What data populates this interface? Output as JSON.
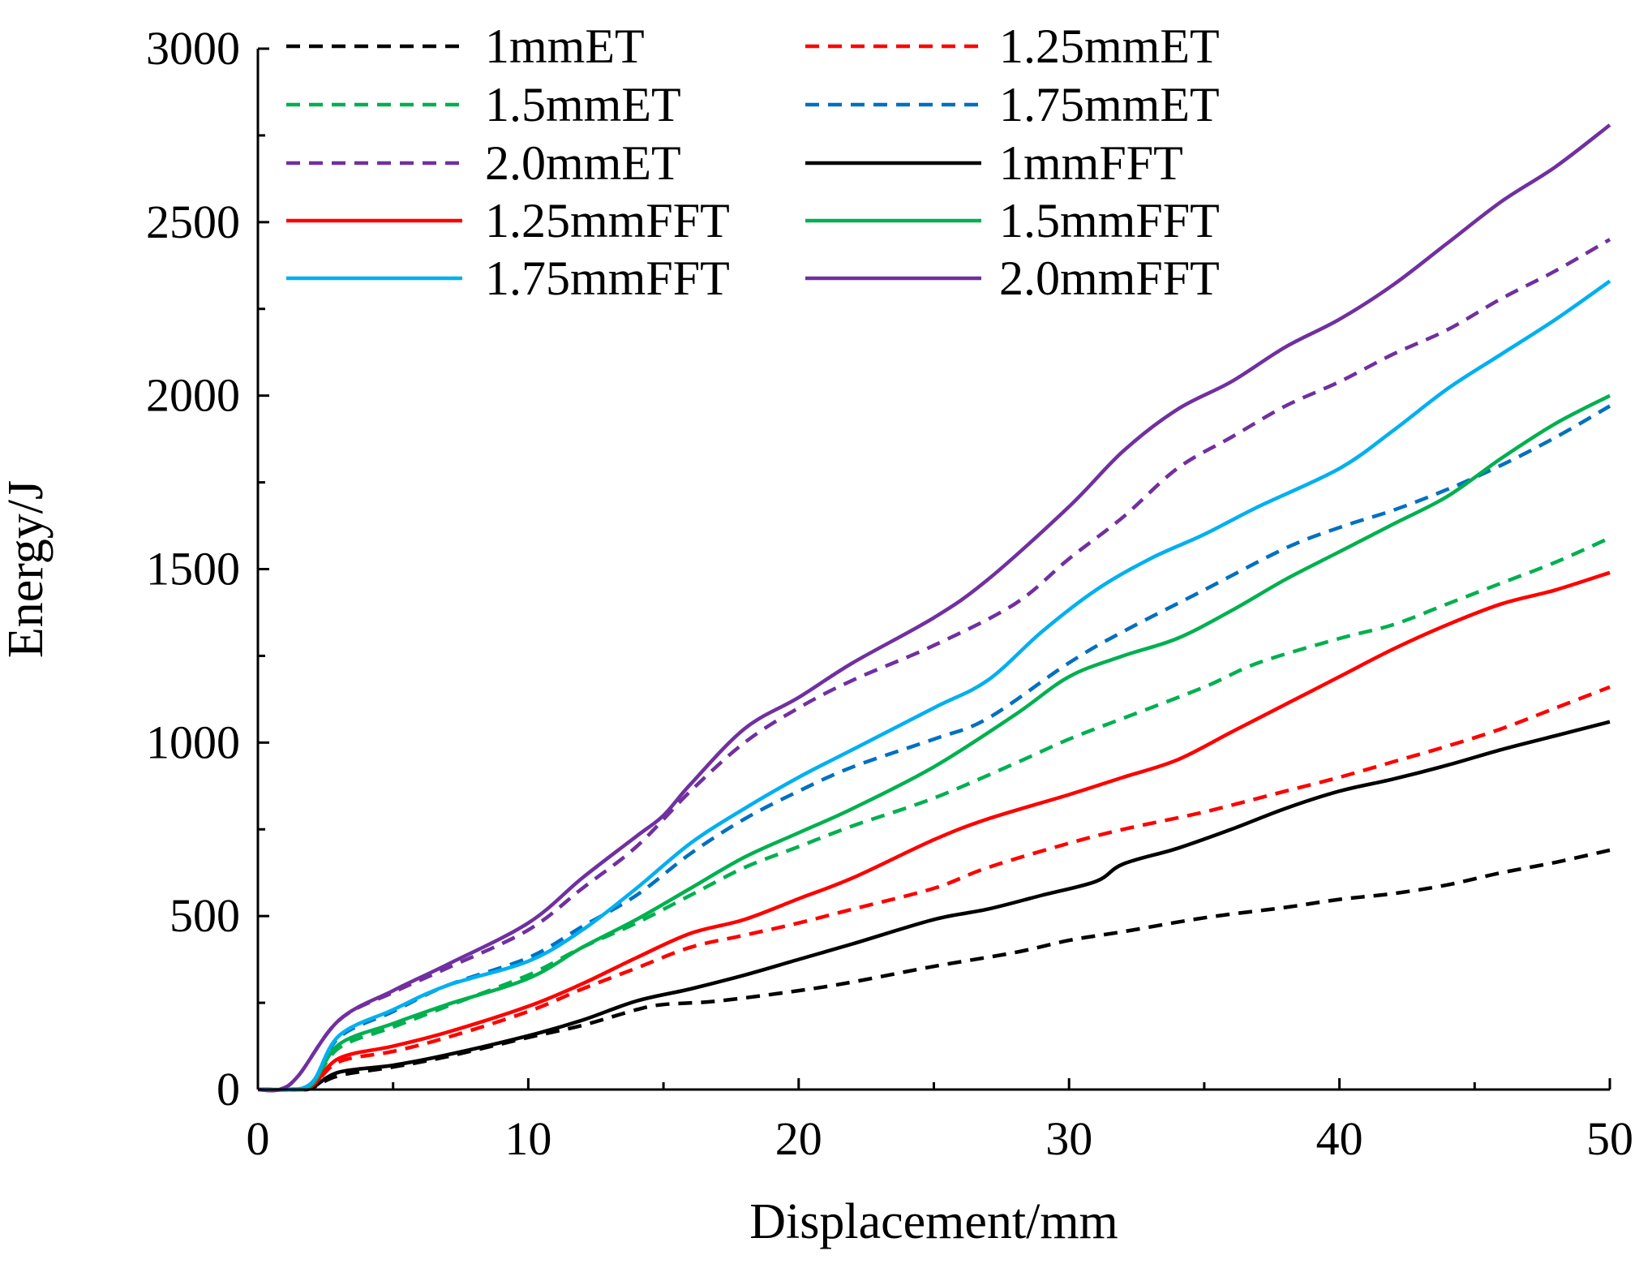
{
  "chart_data": {
    "type": "line",
    "title": "",
    "xlabel": "Displacement/mm",
    "ylabel": "Energy/J",
    "xlim": [
      0,
      50
    ],
    "ylim": [
      0,
      3000
    ],
    "xticks": [
      0,
      10,
      20,
      30,
      40,
      50
    ],
    "yticks": [
      0,
      500,
      1000,
      1500,
      2000,
      2500,
      3000
    ],
    "grid": false,
    "legend_position": "top-left",
    "series": [
      {
        "name": "1mmET",
        "color": "#000000",
        "dashed": true,
        "points": [
          [
            0,
            0
          ],
          [
            1.5,
            0
          ],
          [
            2,
            5
          ],
          [
            3,
            40
          ],
          [
            5,
            65
          ],
          [
            7,
            95
          ],
          [
            10,
            150
          ],
          [
            12,
            185
          ],
          [
            14,
            230
          ],
          [
            15,
            245
          ],
          [
            17,
            255
          ],
          [
            20,
            285
          ],
          [
            22,
            310
          ],
          [
            25,
            355
          ],
          [
            28,
            395
          ],
          [
            30,
            430
          ],
          [
            32,
            455
          ],
          [
            35,
            495
          ],
          [
            38,
            525
          ],
          [
            40,
            548
          ],
          [
            42,
            565
          ],
          [
            44,
            590
          ],
          [
            46,
            625
          ],
          [
            48,
            655
          ],
          [
            50,
            690
          ]
        ]
      },
      {
        "name": "1.25mmET",
        "color": "#ff0000",
        "dashed": true,
        "points": [
          [
            0,
            0
          ],
          [
            1.2,
            0
          ],
          [
            2,
            10
          ],
          [
            3,
            80
          ],
          [
            5,
            110
          ],
          [
            7,
            150
          ],
          [
            10,
            225
          ],
          [
            12,
            290
          ],
          [
            14,
            350
          ],
          [
            16,
            410
          ],
          [
            18,
            445
          ],
          [
            20,
            480
          ],
          [
            22,
            520
          ],
          [
            25,
            580
          ],
          [
            27,
            640
          ],
          [
            30,
            710
          ],
          [
            32,
            750
          ],
          [
            35,
            800
          ],
          [
            38,
            860
          ],
          [
            40,
            900
          ],
          [
            42,
            945
          ],
          [
            44,
            990
          ],
          [
            46,
            1040
          ],
          [
            48,
            1100
          ],
          [
            50,
            1160
          ]
        ]
      },
      {
        "name": "1.5mmET",
        "color": "#00b050",
        "dashed": true,
        "points": [
          [
            0,
            0
          ],
          [
            1.2,
            0
          ],
          [
            2,
            15
          ],
          [
            3,
            120
          ],
          [
            5,
            180
          ],
          [
            7,
            240
          ],
          [
            10,
            330
          ],
          [
            12,
            410
          ],
          [
            14,
            480
          ],
          [
            16,
            560
          ],
          [
            18,
            640
          ],
          [
            20,
            700
          ],
          [
            22,
            760
          ],
          [
            25,
            840
          ],
          [
            28,
            940
          ],
          [
            30,
            1010
          ],
          [
            32,
            1070
          ],
          [
            35,
            1160
          ],
          [
            37,
            1230
          ],
          [
            40,
            1300
          ],
          [
            42,
            1340
          ],
          [
            44,
            1400
          ],
          [
            46,
            1460
          ],
          [
            48,
            1520
          ],
          [
            50,
            1590
          ]
        ]
      },
      {
        "name": "1.75mmET",
        "color": "#0070c0",
        "dashed": true,
        "points": [
          [
            0,
            0
          ],
          [
            1,
            0
          ],
          [
            2,
            20
          ],
          [
            3,
            150
          ],
          [
            5,
            225
          ],
          [
            7,
            300
          ],
          [
            10,
            380
          ],
          [
            12,
            470
          ],
          [
            14,
            560
          ],
          [
            16,
            680
          ],
          [
            18,
            780
          ],
          [
            20,
            860
          ],
          [
            22,
            930
          ],
          [
            25,
            1010
          ],
          [
            27,
            1070
          ],
          [
            30,
            1230
          ],
          [
            32,
            1320
          ],
          [
            35,
            1440
          ],
          [
            38,
            1560
          ],
          [
            40,
            1620
          ],
          [
            42,
            1670
          ],
          [
            44,
            1730
          ],
          [
            46,
            1800
          ],
          [
            48,
            1880
          ],
          [
            50,
            1970
          ]
        ]
      },
      {
        "name": "2.0mmET",
        "color": "#7030a0",
        "dashed": true,
        "points": [
          [
            0,
            0
          ],
          [
            0.8,
            0
          ],
          [
            1.5,
            40
          ],
          [
            3,
            200
          ],
          [
            5,
            280
          ],
          [
            7,
            350
          ],
          [
            10,
            460
          ],
          [
            12,
            580
          ],
          [
            14,
            700
          ],
          [
            16,
            860
          ],
          [
            18,
            1000
          ],
          [
            20,
            1100
          ],
          [
            22,
            1180
          ],
          [
            25,
            1280
          ],
          [
            28,
            1400
          ],
          [
            30,
            1530
          ],
          [
            32,
            1650
          ],
          [
            34,
            1790
          ],
          [
            36,
            1880
          ],
          [
            38,
            1970
          ],
          [
            40,
            2040
          ],
          [
            42,
            2120
          ],
          [
            44,
            2190
          ],
          [
            46,
            2280
          ],
          [
            48,
            2360
          ],
          [
            50,
            2450
          ]
        ]
      },
      {
        "name": "1mmFFT",
        "color": "#000000",
        "dashed": false,
        "points": [
          [
            0,
            0
          ],
          [
            1.5,
            0
          ],
          [
            2,
            5
          ],
          [
            3,
            50
          ],
          [
            5,
            70
          ],
          [
            7,
            100
          ],
          [
            10,
            155
          ],
          [
            12,
            200
          ],
          [
            14,
            255
          ],
          [
            16,
            290
          ],
          [
            18,
            330
          ],
          [
            20,
            375
          ],
          [
            22,
            420
          ],
          [
            25,
            490
          ],
          [
            27,
            520
          ],
          [
            29,
            560
          ],
          [
            31,
            600
          ],
          [
            32,
            650
          ],
          [
            34,
            695
          ],
          [
            36,
            750
          ],
          [
            38,
            810
          ],
          [
            40,
            860
          ],
          [
            42,
            895
          ],
          [
            44,
            935
          ],
          [
            46,
            980
          ],
          [
            48,
            1020
          ],
          [
            50,
            1060
          ]
        ]
      },
      {
        "name": "1.25mmFFT",
        "color": "#ff0000",
        "dashed": false,
        "points": [
          [
            0,
            0
          ],
          [
            1.2,
            0
          ],
          [
            2,
            10
          ],
          [
            3,
            90
          ],
          [
            5,
            125
          ],
          [
            7,
            165
          ],
          [
            10,
            240
          ],
          [
            12,
            305
          ],
          [
            14,
            380
          ],
          [
            16,
            450
          ],
          [
            18,
            490
          ],
          [
            20,
            550
          ],
          [
            22,
            610
          ],
          [
            25,
            720
          ],
          [
            27,
            780
          ],
          [
            30,
            850
          ],
          [
            32,
            900
          ],
          [
            34,
            950
          ],
          [
            36,
            1030
          ],
          [
            38,
            1110
          ],
          [
            40,
            1190
          ],
          [
            42,
            1270
          ],
          [
            44,
            1340
          ],
          [
            46,
            1400
          ],
          [
            48,
            1440
          ],
          [
            50,
            1490
          ]
        ]
      },
      {
        "name": "1.5mmFFT",
        "color": "#00b050",
        "dashed": false,
        "points": [
          [
            0,
            0
          ],
          [
            1.2,
            0
          ],
          [
            2,
            15
          ],
          [
            3,
            130
          ],
          [
            5,
            190
          ],
          [
            7,
            245
          ],
          [
            10,
            320
          ],
          [
            12,
            410
          ],
          [
            14,
            490
          ],
          [
            16,
            580
          ],
          [
            18,
            670
          ],
          [
            20,
            740
          ],
          [
            22,
            810
          ],
          [
            25,
            930
          ],
          [
            28,
            1080
          ],
          [
            30,
            1190
          ],
          [
            32,
            1250
          ],
          [
            34,
            1300
          ],
          [
            36,
            1380
          ],
          [
            38,
            1470
          ],
          [
            40,
            1550
          ],
          [
            42,
            1630
          ],
          [
            44,
            1710
          ],
          [
            46,
            1820
          ],
          [
            48,
            1920
          ],
          [
            50,
            2000
          ]
        ]
      },
      {
        "name": "1.75mmFFT",
        "color": "#00b0f0",
        "dashed": false,
        "points": [
          [
            0,
            0
          ],
          [
            1,
            0
          ],
          [
            2,
            20
          ],
          [
            3,
            155
          ],
          [
            5,
            230
          ],
          [
            7,
            300
          ],
          [
            10,
            370
          ],
          [
            12,
            460
          ],
          [
            14,
            580
          ],
          [
            16,
            710
          ],
          [
            18,
            810
          ],
          [
            20,
            900
          ],
          [
            22,
            980
          ],
          [
            25,
            1100
          ],
          [
            27,
            1180
          ],
          [
            29,
            1320
          ],
          [
            31,
            1440
          ],
          [
            33,
            1530
          ],
          [
            35,
            1600
          ],
          [
            37,
            1680
          ],
          [
            40,
            1790
          ],
          [
            42,
            1900
          ],
          [
            44,
            2020
          ],
          [
            46,
            2120
          ],
          [
            48,
            2220
          ],
          [
            50,
            2330
          ]
        ]
      },
      {
        "name": "2.0mmFFT",
        "color": "#7030a0",
        "dashed": false,
        "points": [
          [
            0,
            0
          ],
          [
            0.8,
            0
          ],
          [
            1.5,
            40
          ],
          [
            3,
            200
          ],
          [
            5,
            285
          ],
          [
            7,
            360
          ],
          [
            10,
            480
          ],
          [
            12,
            610
          ],
          [
            14,
            730
          ],
          [
            15,
            790
          ],
          [
            16,
            880
          ],
          [
            18,
            1040
          ],
          [
            20,
            1130
          ],
          [
            22,
            1230
          ],
          [
            25,
            1360
          ],
          [
            27,
            1470
          ],
          [
            30,
            1680
          ],
          [
            32,
            1840
          ],
          [
            34,
            1960
          ],
          [
            36,
            2040
          ],
          [
            38,
            2140
          ],
          [
            40,
            2220
          ],
          [
            42,
            2320
          ],
          [
            44,
            2440
          ],
          [
            46,
            2560
          ],
          [
            48,
            2660
          ],
          [
            50,
            2780
          ]
        ]
      }
    ]
  }
}
